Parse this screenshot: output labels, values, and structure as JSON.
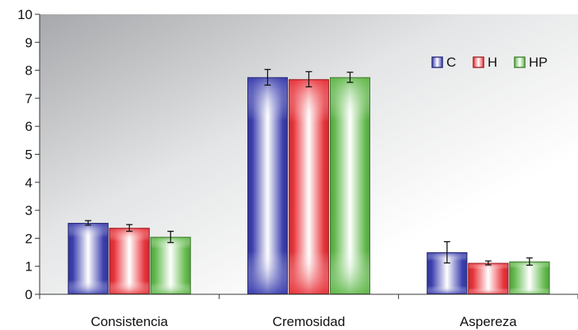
{
  "chart_data": {
    "type": "bar",
    "title": "",
    "xlabel": "",
    "ylabel": "",
    "ylim": [
      0,
      10
    ],
    "yticks": [
      "0",
      "1",
      "2",
      "3",
      "4",
      "5",
      "6",
      "7",
      "8",
      "9",
      "10"
    ],
    "categories": [
      "Consistencia",
      "Cremosidad",
      "Aspereza"
    ],
    "legend_position": "top-right",
    "grid": false,
    "series": [
      {
        "name": "C",
        "color": "#3b3fae",
        "values": [
          2.55,
          7.75,
          1.5
        ],
        "errors": [
          0.08,
          0.28,
          0.38
        ]
      },
      {
        "name": "H",
        "color": "#e8333a",
        "values": [
          2.37,
          7.68,
          1.12
        ],
        "errors": [
          0.12,
          0.27,
          0.07
        ]
      },
      {
        "name": "HP",
        "color": "#62b94c",
        "values": [
          2.05,
          7.75,
          1.17
        ],
        "errors": [
          0.2,
          0.18,
          0.13
        ]
      }
    ]
  }
}
